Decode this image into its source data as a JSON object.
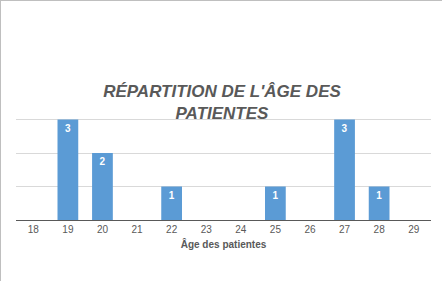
{
  "chart_data": {
    "type": "bar",
    "title": "RÉPARTITION DE L'ÂGE DES PATIENTES",
    "x_label": "Âge des patientes",
    "x": [
      19,
      20,
      22,
      25,
      27,
      28
    ],
    "values": [
      3,
      2,
      1,
      1,
      3,
      1
    ],
    "color": "#5b9bd5",
    "xlim": [
      17.5,
      29.5
    ],
    "xticks": [
      18,
      19,
      20,
      21,
      22,
      23,
      24,
      25,
      26,
      27,
      28,
      29
    ],
    "ylim": [
      0,
      4
    ],
    "yticks": [
      0,
      1,
      2,
      3,
      4
    ],
    "grid": true,
    "data_labels": true,
    "tick_labels": "x"
  }
}
